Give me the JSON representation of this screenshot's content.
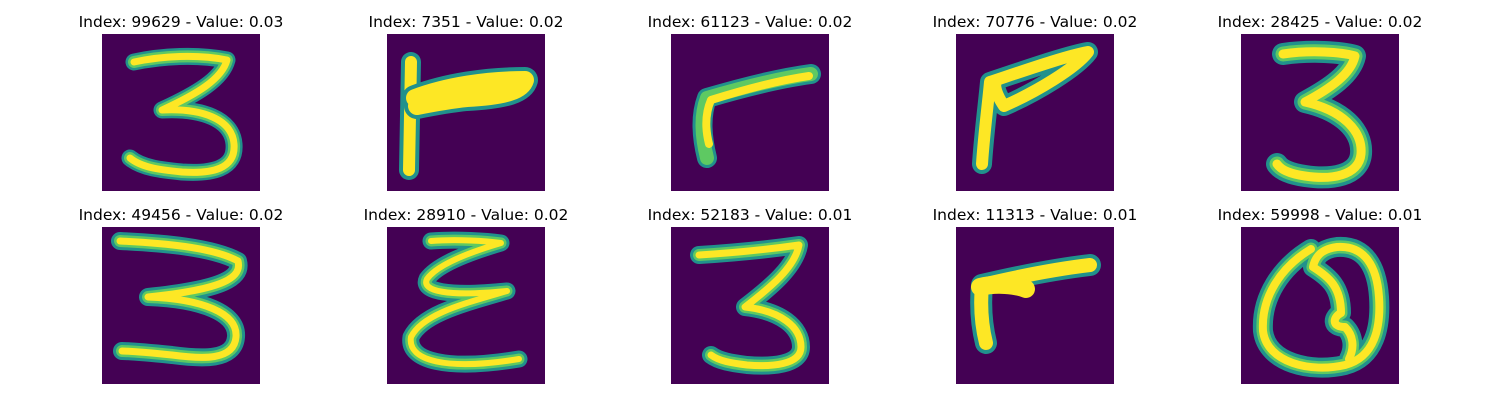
{
  "colors": {
    "background": "#440154",
    "edge": "#21918c",
    "mid": "#5ec962",
    "stroke": "#fde725"
  },
  "panels": [
    {
      "title": "Index: 99629 - Value: 0.03",
      "glyph": "digit-three"
    },
    {
      "title": "Index: 7351 - Value: 0.02",
      "glyph": "digit-seven-rotated"
    },
    {
      "title": "Index: 61123 - Value: 0.02",
      "glyph": "digit-seven-rotated"
    },
    {
      "title": "Index: 70776 - Value: 0.02",
      "glyph": "digit-seven-rotated"
    },
    {
      "title": "Index: 28425 - Value: 0.02",
      "glyph": "digit-three"
    },
    {
      "title": "Index: 49456 - Value: 0.02",
      "glyph": "digit-three"
    },
    {
      "title": "Index: 28910 - Value: 0.02",
      "glyph": "digit-three-mirrored"
    },
    {
      "title": "Index: 52183 - Value: 0.01",
      "glyph": "digit-three"
    },
    {
      "title": "Index: 11313 - Value: 0.01",
      "glyph": "digit-seven-rotated"
    },
    {
      "title": "Index: 59998 - Value: 0.01",
      "glyph": "digit-zero-loop"
    }
  ]
}
